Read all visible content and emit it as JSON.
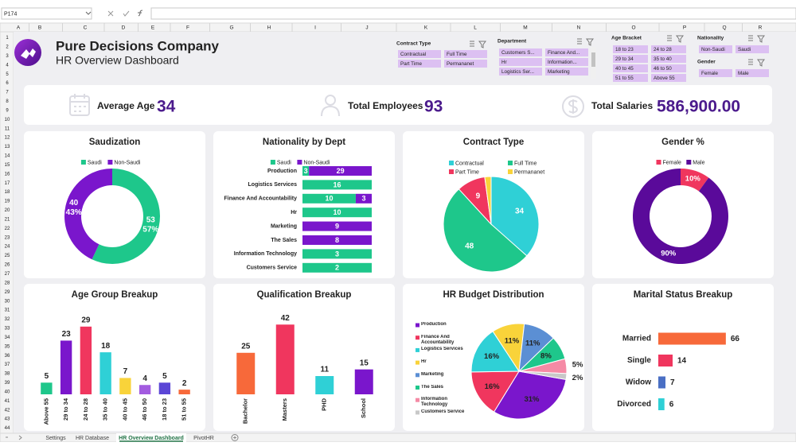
{
  "excel": {
    "name_box": "P174",
    "columns": [
      "A",
      "B",
      "C",
      "D",
      "E",
      "F",
      "G",
      "H",
      "I",
      "J",
      "K",
      "L",
      "M",
      "N",
      "O",
      "P",
      "Q",
      "R"
    ],
    "rows": [
      1,
      2,
      3,
      4,
      5,
      6,
      7,
      8,
      9,
      10,
      11,
      12,
      13,
      14,
      15,
      16,
      17,
      18,
      19,
      20,
      21,
      22,
      23,
      24,
      25,
      26,
      27,
      28,
      29,
      30,
      31,
      32,
      33,
      34,
      35,
      36,
      37,
      38,
      39,
      40,
      41,
      42,
      43,
      44
    ],
    "tabs": [
      "Settings",
      "HR Database",
      "HR Overview Dashboard",
      "PivotHR"
    ],
    "active_tab": 2
  },
  "header": {
    "title": "Pure Decisions Company",
    "subtitle": "HR Overview Dashboard"
  },
  "slicers": [
    {
      "title": "Contract Type",
      "items": [
        "Contractual",
        "Full Time",
        "Part Time",
        "Permananet"
      ]
    },
    {
      "title": "Department",
      "items": [
        "Customers S...",
        "Finance And...",
        "Hr",
        "Information...",
        "Logistics Ser...",
        "Marketing"
      ]
    },
    {
      "title": "Age Bracket",
      "items": [
        "18 to 23",
        "24 to 28",
        "29 to 34",
        "35 to 40",
        "40 to 45",
        "46 to 50",
        "51 to 55",
        "Above 55"
      ]
    },
    {
      "title": "Nationality",
      "items": [
        "Non-Saudi",
        "Saudi"
      ]
    },
    {
      "title": "Gender",
      "items": [
        "Female",
        "Male"
      ]
    }
  ],
  "kpis": [
    {
      "label": "Average Age",
      "value": 34
    },
    {
      "label": "Total Employees",
      "value": 93
    },
    {
      "label": "Total Salaries",
      "value": "586,900.00"
    }
  ],
  "chart_data": [
    {
      "type": "donut",
      "title": "Saudization",
      "legend": "top",
      "categories": [
        "Saudi",
        "Non-Saudi"
      ],
      "values": [
        53,
        40
      ],
      "percent_labels": [
        "57%",
        "43%"
      ],
      "colors": [
        "#1ec78b",
        "#7a16cc"
      ]
    },
    {
      "type": "bar",
      "title": "Nationality by Dept",
      "orientation": "horizontal",
      "stacking": "percent",
      "legend": "top",
      "categories": [
        "Production",
        "Logistics Services",
        "Finance And Accountability",
        "Hr",
        "Marketing",
        "The Sales",
        "Information Technology",
        "Customers Service"
      ],
      "series": [
        {
          "name": "Saudi",
          "color": "#1ec78b",
          "values": [
            3,
            16,
            10,
            10,
            0,
            0,
            3,
            2
          ]
        },
        {
          "name": "Non-Saudi",
          "color": "#7a16cc",
          "values": [
            29,
            0,
            3,
            0,
            9,
            8,
            0,
            0
          ]
        }
      ]
    },
    {
      "type": "pie",
      "title": "Contract Type",
      "legend": "top",
      "categories": [
        "Contractual",
        "Full Time",
        "Part Time",
        "Permananet"
      ],
      "values": [
        34,
        48,
        9,
        2
      ],
      "colors": [
        "#2fd0d6",
        "#1ec78b",
        "#f0365e",
        "#f9d33a"
      ]
    },
    {
      "type": "donut",
      "title": "Gender %",
      "legend": "top",
      "categories": [
        "Female",
        "Male"
      ],
      "values": [
        10,
        90
      ],
      "value_labels": [
        "10%",
        "90%"
      ],
      "colors": [
        "#f0365e",
        "#5a0a9a"
      ]
    },
    {
      "type": "bar",
      "title": "Age Group Breakup",
      "categories": [
        "Above 55",
        "29 to 34",
        "24 to 28",
        "35 to 40",
        "40 to 45",
        "46 to 50",
        "18 to 23",
        "51 to 55"
      ],
      "values": [
        5,
        23,
        29,
        18,
        7,
        4,
        5,
        2
      ],
      "ylim": [
        0,
        32
      ],
      "colors": [
        "#1ec78b",
        "#7a16cc",
        "#f0365e",
        "#2fd0d6",
        "#f9d33a",
        "#a35ce0",
        "#5b46d6",
        "#f7693a"
      ]
    },
    {
      "type": "bar",
      "title": "Qualification Breakup",
      "categories": [
        "Bachelor",
        "Masters",
        "PHD",
        "School"
      ],
      "values": [
        25,
        42,
        11,
        15
      ],
      "ylim": [
        0,
        45
      ],
      "colors": [
        "#f7693a",
        "#f0365e",
        "#2fd0d6",
        "#7a16cc"
      ]
    },
    {
      "type": "pie",
      "title": "HR Budget Distribution",
      "legend": "left",
      "categories": [
        "Production",
        "Finance And Accountability",
        "Logistics Services",
        "Hr",
        "Marketing",
        "The Sales",
        "Information Technology",
        "Customers Service"
      ],
      "values": [
        31,
        16,
        16,
        11,
        11,
        8,
        5,
        2
      ],
      "value_labels": [
        "31%",
        "16%",
        "16%",
        "11%",
        "11%",
        "8%",
        "5%",
        "2%"
      ],
      "colors": [
        "#7a16cc",
        "#f0365e",
        "#2fd0d6",
        "#f9d33a",
        "#5b8fd4",
        "#1ec78b",
        "#f58aa5",
        "#c8c8c8"
      ]
    },
    {
      "type": "bar",
      "title": "Marital Status Breakup",
      "orientation": "horizontal",
      "categories": [
        "Married",
        "Single",
        "Widow",
        "Divorced"
      ],
      "values": [
        66,
        14,
        7,
        6
      ],
      "xlim": [
        0,
        70
      ],
      "colors": [
        "#f7693a",
        "#f0365e",
        "#4a6fc4",
        "#2fd0d6"
      ]
    }
  ]
}
